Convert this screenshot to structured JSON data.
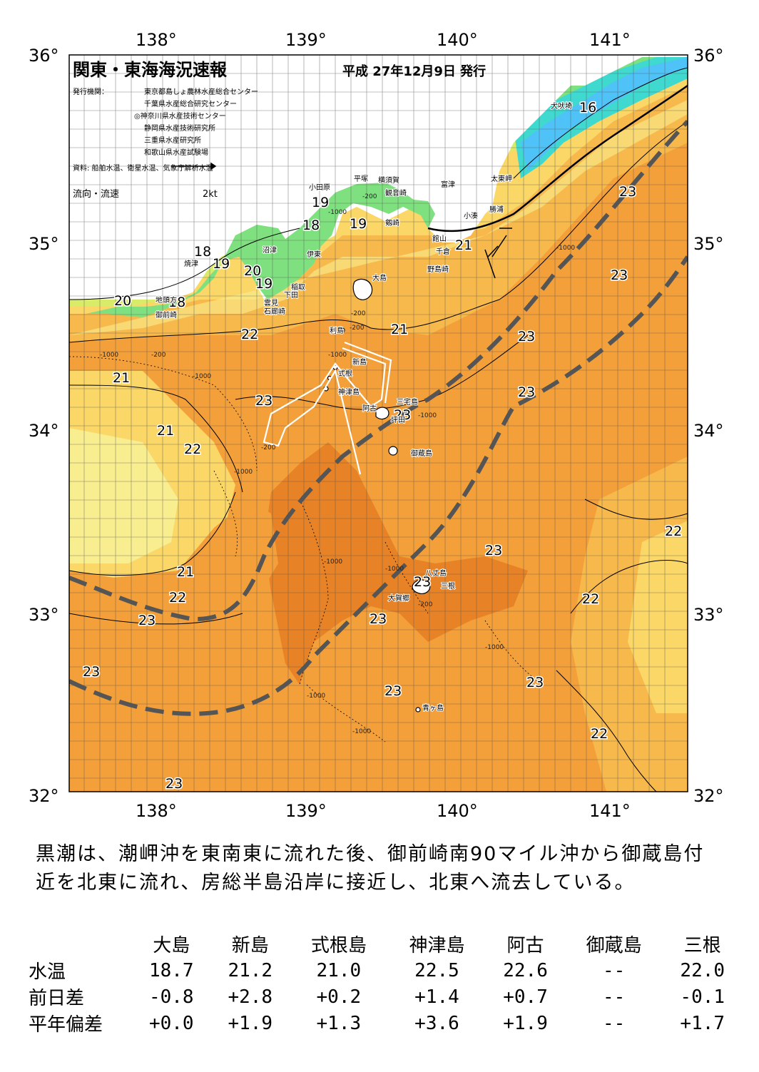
{
  "map": {
    "title": "関東・東海海況速報",
    "issue_date": "平成 27年12月9日 発行",
    "issuer_label": "発行機関：",
    "issuers": [
      "東京都島しょ農林水産総合センター",
      "千葉県水産総合研究センター",
      "◎神奈川県水産技術センター",
      "静岡県水産技術研究所",
      "三重県水産研究所",
      "和歌山県水産試験場"
    ],
    "source": "資料: 船舶水温、衛星水温、気象庁解析水温",
    "legend_label": "流向・流速",
    "legend_speed": "2kt",
    "lon_labels": [
      "138°",
      "139°",
      "140°",
      "141°"
    ],
    "lat_labels": [
      "36°",
      "35°",
      "34°",
      "33°",
      "32°"
    ],
    "isotherm_labels": [
      "16",
      "23",
      "23",
      "23",
      "19",
      "18",
      "19",
      "21",
      "18",
      "19",
      "20",
      "19",
      "20",
      "18",
      "22",
      "21",
      "23",
      "23",
      "21",
      "22",
      "23",
      "21",
      "23",
      "22",
      "23",
      "23",
      "21",
      "22",
      "23",
      "22",
      "23",
      "23",
      "23",
      "22",
      "23"
    ],
    "depth_labels": [
      "-200",
      "-1000",
      "-200",
      "-1000",
      "-200",
      "-1000",
      "-200",
      "-1000",
      "-1000",
      "-1000",
      "-1000",
      "-200",
      "-1000",
      "-1000",
      "-1000",
      "-1000",
      "-1000",
      "-200"
    ],
    "places": [
      "犬吠埼",
      "太東岬",
      "勝浦",
      "小湊",
      "富津",
      "観音崎",
      "横須賀",
      "平塚",
      "剱崎",
      "小田原",
      "館山",
      "千倉",
      "野島崎",
      "沼津",
      "伊東",
      "焼津",
      "稲取",
      "下田",
      "雲見",
      "石廊崎",
      "地頭方",
      "御前崎",
      "大島",
      "利島",
      "新島",
      "式根",
      "神津島",
      "三宅島",
      "阿古",
      "坪田",
      "御蔵島",
      "八丈島",
      "三根",
      "大賀郷",
      "青ヶ島"
    ]
  },
  "summary": "黒潮は、潮岬沖を東南東に流れた後、御前崎南90マイル沖から御蔵島付近を北東に流れ、房総半島沿岸に接近し、北東へ流去している。",
  "table": {
    "columns": [
      "大島",
      "新島",
      "式根島",
      "神津島",
      "阿古",
      "御蔵島",
      "三根"
    ],
    "rows": [
      {
        "label": "水温",
        "values": [
          "18.7",
          "21.2",
          "21.0",
          "22.5",
          "22.6",
          "--",
          "22.0"
        ]
      },
      {
        "label": "前日差",
        "values": [
          "-0.8",
          "+2.8",
          "+0.2",
          "+1.4",
          "+0.7",
          "--",
          "-0.1"
        ]
      },
      {
        "label": "平年偏差",
        "values": [
          "+0.0",
          "+1.9",
          "+1.3",
          "+3.6",
          "+1.9",
          "--",
          "+1.7"
        ]
      }
    ]
  },
  "colors": {
    "cold_blue": "#4fc3f7",
    "cyan": "#3fd9d0",
    "green": "#7fe07f",
    "yellow_green": "#d8ec6a",
    "pale_yellow": "#f8ee90",
    "yellow": "#fbd768",
    "light_orange": "#f7b94c",
    "orange": "#f4a03a",
    "dark_orange": "#ea8a26",
    "deep_orange": "#dc6c16",
    "kuroshio_line": "#555555"
  }
}
